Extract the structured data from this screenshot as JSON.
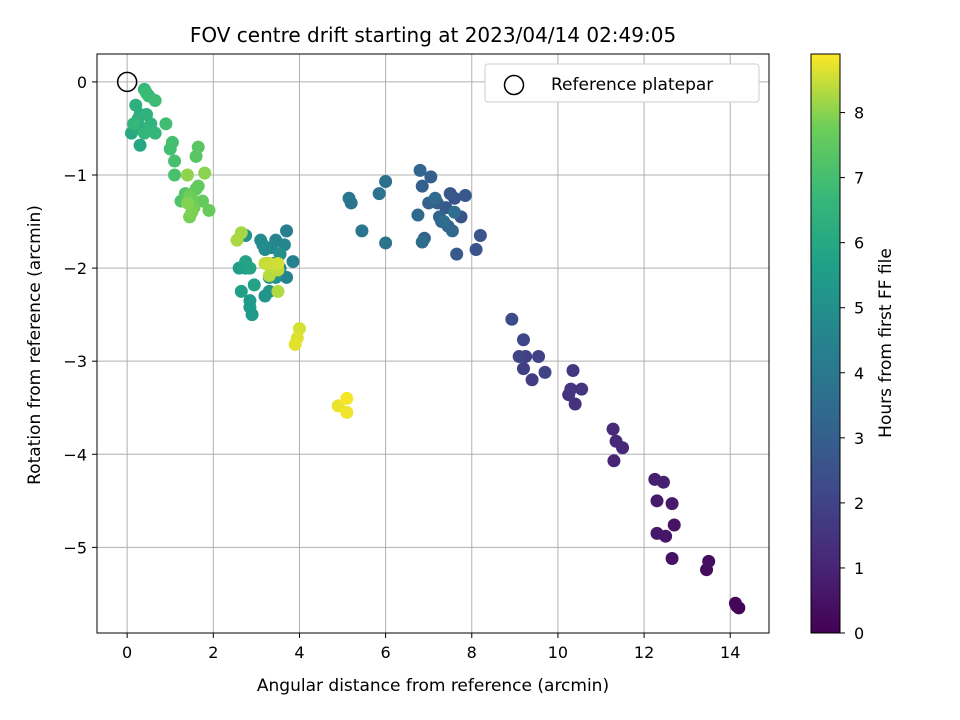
{
  "chart_data": {
    "type": "scatter",
    "title": "FOV centre drift starting at 2023/04/14 02:49:05",
    "xlabel": "Angular distance from reference (arcmin)",
    "ylabel": "Rotation from reference (arcmin)",
    "xlim": [
      -0.7,
      14.9
    ],
    "ylim": [
      -5.92,
      0.3
    ],
    "xticks": [
      0,
      2,
      4,
      6,
      8,
      10,
      12,
      14
    ],
    "yticks": [
      0,
      -1,
      -2,
      -3,
      -4,
      -5
    ],
    "xtick_labels": [
      "0",
      "2",
      "4",
      "6",
      "8",
      "10",
      "12",
      "14"
    ],
    "ytick_labels": [
      "0",
      "−1",
      "−2",
      "−3",
      "−4",
      "−5"
    ],
    "grid": true,
    "legend": {
      "placement": "upper right",
      "entries": [
        {
          "label": "Reference platepar",
          "marker": "open-circle",
          "x": 0,
          "y": 0
        }
      ]
    },
    "colorbar": {
      "label": "Hours from first FF file",
      "colormap": "viridis",
      "range": [
        0,
        8.9
      ],
      "ticks": [
        0,
        1,
        2,
        3,
        4,
        5,
        6,
        7,
        8
      ],
      "tick_labels": [
        "0",
        "1",
        "2",
        "3",
        "4",
        "5",
        "6",
        "7",
        "8"
      ]
    },
    "points": [
      [
        14.15,
        -5.63,
        0.05
      ],
      [
        14.2,
        -5.65,
        0.1
      ],
      [
        14.12,
        -5.6,
        0.15
      ],
      [
        13.45,
        -5.24,
        0.3
      ],
      [
        13.5,
        -5.15,
        0.35
      ],
      [
        12.65,
        -5.12,
        0.5
      ],
      [
        12.7,
        -4.76,
        0.55
      ],
      [
        12.5,
        -4.88,
        0.6
      ],
      [
        12.3,
        -4.85,
        0.65
      ],
      [
        12.65,
        -4.53,
        0.7
      ],
      [
        12.3,
        -4.5,
        0.75
      ],
      [
        12.25,
        -4.27,
        0.85
      ],
      [
        12.45,
        -4.3,
        0.9
      ],
      [
        11.3,
        -4.07,
        1.05
      ],
      [
        11.5,
        -3.93,
        1.1
      ],
      [
        11.35,
        -3.86,
        1.15
      ],
      [
        11.28,
        -3.73,
        1.2
      ],
      [
        10.4,
        -3.46,
        1.4
      ],
      [
        10.25,
        -3.36,
        1.45
      ],
      [
        10.55,
        -3.3,
        1.5
      ],
      [
        10.3,
        -3.3,
        1.55
      ],
      [
        10.35,
        -3.1,
        1.6
      ],
      [
        9.4,
        -3.2,
        1.8
      ],
      [
        9.2,
        -3.08,
        1.85
      ],
      [
        9.25,
        -2.95,
        1.9
      ],
      [
        9.55,
        -2.95,
        1.95
      ],
      [
        9.7,
        -3.12,
        2.0
      ],
      [
        9.1,
        -2.95,
        2.05
      ],
      [
        9.2,
        -2.77,
        2.1
      ],
      [
        8.93,
        -2.55,
        2.25
      ],
      [
        7.75,
        -1.45,
        2.55
      ],
      [
        7.6,
        -1.25,
        2.6
      ],
      [
        8.1,
        -1.8,
        2.6
      ],
      [
        8.2,
        -1.65,
        2.65
      ],
      [
        7.85,
        -1.22,
        2.7
      ],
      [
        7.5,
        -1.2,
        2.75
      ],
      [
        7.4,
        -1.35,
        2.8
      ],
      [
        7.65,
        -1.85,
        2.85
      ],
      [
        7.3,
        -1.5,
        2.9
      ],
      [
        7.2,
        -1.3,
        2.95
      ],
      [
        7.05,
        -1.02,
        3.0
      ],
      [
        6.85,
        -1.12,
        3.05
      ],
      [
        7.0,
        -1.3,
        3.1
      ],
      [
        6.9,
        -1.68,
        3.15
      ],
      [
        7.45,
        -1.55,
        3.2
      ],
      [
        6.8,
        -0.95,
        3.25
      ],
      [
        7.25,
        -1.45,
        3.3
      ],
      [
        7.55,
        -1.6,
        3.35
      ],
      [
        6.75,
        -1.43,
        3.4
      ],
      [
        7.15,
        -1.25,
        3.45
      ],
      [
        6.85,
        -1.72,
        3.5
      ],
      [
        7.35,
        -1.5,
        3.55
      ],
      [
        7.6,
        -1.4,
        3.6
      ],
      [
        6.0,
        -1.07,
        3.7
      ],
      [
        5.85,
        -1.2,
        3.75
      ],
      [
        6.0,
        -1.73,
        3.8
      ],
      [
        5.2,
        -1.3,
        3.85
      ],
      [
        5.45,
        -1.6,
        3.9
      ],
      [
        5.15,
        -1.25,
        3.95
      ],
      [
        3.7,
        -1.6,
        4.3
      ],
      [
        3.85,
        -1.93,
        4.4
      ],
      [
        3.7,
        -2.1,
        4.45
      ],
      [
        3.55,
        -2.0,
        4.5
      ],
      [
        3.65,
        -1.75,
        4.55
      ],
      [
        3.35,
        -1.78,
        4.6
      ],
      [
        3.45,
        -1.7,
        4.65
      ],
      [
        3.15,
        -1.75,
        4.7
      ],
      [
        3.25,
        -1.95,
        4.75
      ],
      [
        3.1,
        -1.7,
        4.8
      ],
      [
        3.4,
        -1.95,
        4.85
      ],
      [
        3.2,
        -1.8,
        4.9
      ],
      [
        3.3,
        -2.1,
        4.95
      ],
      [
        3.55,
        -1.85,
        5.0
      ],
      [
        3.45,
        -2.1,
        5.05
      ],
      [
        2.75,
        -1.65,
        5.1
      ],
      [
        3.2,
        -2.3,
        5.2
      ],
      [
        3.3,
        -2.25,
        5.25
      ],
      [
        2.9,
        -2.5,
        5.35
      ],
      [
        2.85,
        -2.42,
        5.4
      ],
      [
        2.85,
        -2.35,
        5.45
      ],
      [
        2.75,
        -2.0,
        5.55
      ],
      [
        2.6,
        -2.0,
        5.6
      ],
      [
        2.65,
        -2.25,
        5.65
      ],
      [
        2.75,
        -1.93,
        5.75
      ],
      [
        2.95,
        -2.18,
        5.8
      ],
      [
        2.85,
        -2.0,
        5.85
      ],
      [
        0.3,
        -0.68,
        5.95
      ],
      [
        0.1,
        -0.55,
        6.05
      ],
      [
        0.2,
        -0.45,
        6.1
      ],
      [
        0.35,
        -0.5,
        6.15
      ],
      [
        0.3,
        -0.35,
        6.2
      ],
      [
        0.2,
        -0.25,
        6.3
      ],
      [
        0.25,
        -0.4,
        6.35
      ],
      [
        0.45,
        -0.35,
        6.4
      ],
      [
        0.5,
        -0.5,
        6.45
      ],
      [
        0.55,
        -0.45,
        6.5
      ],
      [
        0.4,
        -0.55,
        6.55
      ],
      [
        0.65,
        -0.55,
        6.6
      ],
      [
        0.15,
        -0.45,
        6.65
      ],
      [
        0.4,
        -0.08,
        6.7
      ],
      [
        0.5,
        -0.15,
        6.75
      ],
      [
        0.45,
        -0.12,
        6.8
      ],
      [
        0.65,
        -0.2,
        6.85
      ],
      [
        0.9,
        -0.45,
        6.9
      ],
      [
        1.0,
        -0.72,
        6.95
      ],
      [
        1.05,
        -0.65,
        7.0
      ],
      [
        1.1,
        -0.85,
        7.05
      ],
      [
        1.1,
        -1.0,
        7.1
      ],
      [
        1.25,
        -1.28,
        7.2
      ],
      [
        1.35,
        -1.2,
        7.3
      ],
      [
        1.6,
        -0.8,
        7.35
      ],
      [
        1.65,
        -0.7,
        7.4
      ],
      [
        1.6,
        -1.15,
        7.5
      ],
      [
        1.65,
        -1.12,
        7.55
      ],
      [
        1.75,
        -1.28,
        7.6
      ],
      [
        1.9,
        -1.38,
        7.65
      ],
      [
        1.5,
        -1.25,
        7.7
      ],
      [
        1.45,
        -1.22,
        7.75
      ],
      [
        1.55,
        -1.35,
        7.8
      ],
      [
        1.45,
        -1.45,
        7.85
      ],
      [
        1.5,
        -1.4,
        7.9
      ],
      [
        1.4,
        -1.3,
        7.95
      ],
      [
        1.8,
        -0.98,
        8.0
      ],
      [
        1.4,
        -1.0,
        8.05
      ],
      [
        2.65,
        -1.62,
        8.2
      ],
      [
        2.55,
        -1.7,
        8.25
      ],
      [
        3.5,
        -2.25,
        8.3
      ],
      [
        3.3,
        -2.08,
        8.35
      ],
      [
        3.5,
        -2.02,
        8.4
      ],
      [
        3.2,
        -1.95,
        8.45
      ],
      [
        3.3,
        -1.95,
        8.5
      ],
      [
        3.5,
        -1.95,
        8.55
      ],
      [
        4.0,
        -2.65,
        8.6
      ],
      [
        3.95,
        -2.75,
        8.65
      ],
      [
        3.9,
        -2.82,
        8.7
      ],
      [
        4.9,
        -3.48,
        8.75
      ],
      [
        5.1,
        -3.55,
        8.8
      ],
      [
        5.1,
        -3.4,
        8.85
      ]
    ]
  }
}
